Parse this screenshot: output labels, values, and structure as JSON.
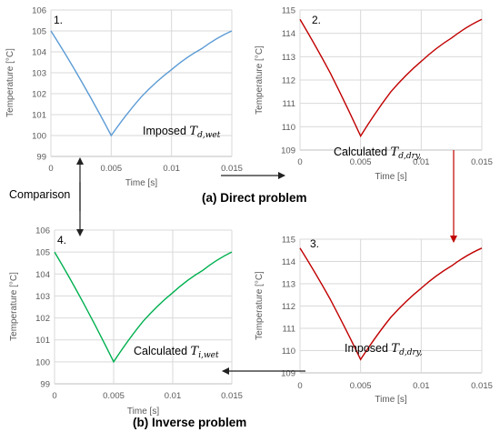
{
  "captions": {
    "direct": "(a) Direct problem",
    "inverse": "(b) Inverse problem"
  },
  "comparison_label": "Comparison",
  "colors": {
    "blue": "#5b9bd5",
    "red": "#c00000",
    "green": "#00b050",
    "grid": "#d9d9d9",
    "arrow": "#222222",
    "red_arrow": "#c00000"
  },
  "chart_data": [
    {
      "panel": "1.",
      "type": "line",
      "xlabel": "Time [s]",
      "ylabel": "Temperature [°C]",
      "xlim": [
        0,
        0.015
      ],
      "ylim": [
        99,
        106
      ],
      "xticks": [
        "0",
        "0.005",
        "0.01",
        "0.015"
      ],
      "yticks": [
        "99",
        "100",
        "101",
        "102",
        "103",
        "104",
        "105",
        "106"
      ],
      "grid": true,
      "color": "#5b9bd5",
      "annotation": {
        "text": "Imposed ",
        "symbol": "T",
        "subscript": "d,wet"
      },
      "series": [
        {
          "x": [
            0,
            0.0025,
            0.005,
            0.0075,
            0.01,
            0.0125,
            0.015
          ],
          "values": [
            105,
            102.62,
            100.0,
            101.85,
            103.15,
            104.15,
            105.0
          ]
        }
      ]
    },
    {
      "panel": "2.",
      "type": "line",
      "xlabel": "Time [s]",
      "ylabel": "Temperature [°C]",
      "xlim": [
        0,
        0.015
      ],
      "ylim": [
        109,
        115
      ],
      "xticks": [
        "0",
        "0.005",
        "0.01",
        "0.015"
      ],
      "yticks": [
        "109",
        "110",
        "111",
        "112",
        "113",
        "114",
        "115"
      ],
      "grid": true,
      "color": "#c00000",
      "annotation": {
        "text": "Calculated ",
        "symbol": "T",
        "subscript": "d,dry,"
      },
      "series": [
        {
          "x": [
            0,
            0.0025,
            0.005,
            0.0075,
            0.01,
            0.0125,
            0.015
          ],
          "values": [
            114.6,
            112.3,
            109.6,
            111.5,
            112.8,
            113.8,
            114.6
          ]
        }
      ]
    },
    {
      "panel": "3.",
      "type": "line",
      "xlabel": "Time [s]",
      "ylabel": "Temperature [°C]",
      "xlim": [
        0,
        0.015
      ],
      "ylim": [
        109,
        115
      ],
      "xticks": [
        "0",
        "0.005",
        "0.01",
        "0.015"
      ],
      "yticks": [
        "109",
        "110",
        "111",
        "112",
        "113",
        "114",
        "115"
      ],
      "grid": true,
      "color": "#c00000",
      "annotation": {
        "text": "Imposed ",
        "symbol": "T",
        "subscript": "d,dry,"
      },
      "series": [
        {
          "x": [
            0,
            0.0025,
            0.005,
            0.0075,
            0.01,
            0.0125,
            0.015
          ],
          "values": [
            114.6,
            112.3,
            109.6,
            111.5,
            112.8,
            113.8,
            114.6
          ]
        }
      ]
    },
    {
      "panel": "4.",
      "type": "line",
      "xlabel": "Time [s]",
      "ylabel": "Temperature [°C]",
      "xlim": [
        0,
        0.015
      ],
      "ylim": [
        99,
        106
      ],
      "xticks": [
        "0",
        "0.005",
        "0.01",
        "0.015"
      ],
      "yticks": [
        "99",
        "100",
        "101",
        "102",
        "103",
        "104",
        "105",
        "106"
      ],
      "grid": true,
      "color": "#00b050",
      "annotation": {
        "text": "Calculated ",
        "symbol": "T",
        "subscript": "i,wet"
      },
      "series": [
        {
          "x": [
            0,
            0.0025,
            0.005,
            0.0075,
            0.01,
            0.0125,
            0.015
          ],
          "values": [
            105,
            102.62,
            100.0,
            101.85,
            103.15,
            104.15,
            105.0
          ]
        }
      ]
    }
  ]
}
